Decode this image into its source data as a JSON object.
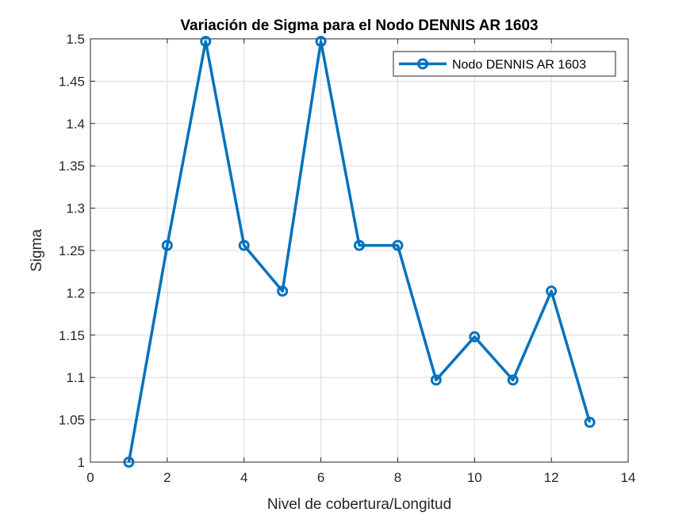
{
  "chart_data": {
    "type": "line",
    "title": "Variación de Sigma para el Nodo DENNIS AR 1603",
    "xlabel": "Nivel de cobertura/Longitud",
    "ylabel": "Sigma",
    "xlim": [
      0,
      14
    ],
    "ylim": [
      1,
      1.5
    ],
    "xticks": [
      0,
      2,
      4,
      6,
      8,
      10,
      12,
      14
    ],
    "xtick_labels": [
      "0",
      "2",
      "4",
      "6",
      "8",
      "10",
      "12",
      "14"
    ],
    "yticks": [
      1,
      1.05,
      1.1,
      1.15,
      1.2,
      1.25,
      1.3,
      1.35,
      1.4,
      1.45,
      1.5
    ],
    "ytick_labels": [
      "1",
      "1.05",
      "1.1",
      "1.15",
      "1.2",
      "1.25",
      "1.3",
      "1.35",
      "1.4",
      "1.45",
      "1.5"
    ],
    "grid": true,
    "legend_position": "top-right",
    "series": [
      {
        "name": "Nodo DENNIS AR 1603",
        "color": "#0072BD",
        "marker": "circle",
        "x": [
          1,
          2,
          3,
          4,
          5,
          6,
          7,
          8,
          9,
          10,
          11,
          12,
          13
        ],
        "y": [
          1.0,
          1.256,
          1.497,
          1.256,
          1.202,
          1.497,
          1.256,
          1.256,
          1.097,
          1.148,
          1.097,
          1.202,
          1.047
        ]
      }
    ]
  }
}
